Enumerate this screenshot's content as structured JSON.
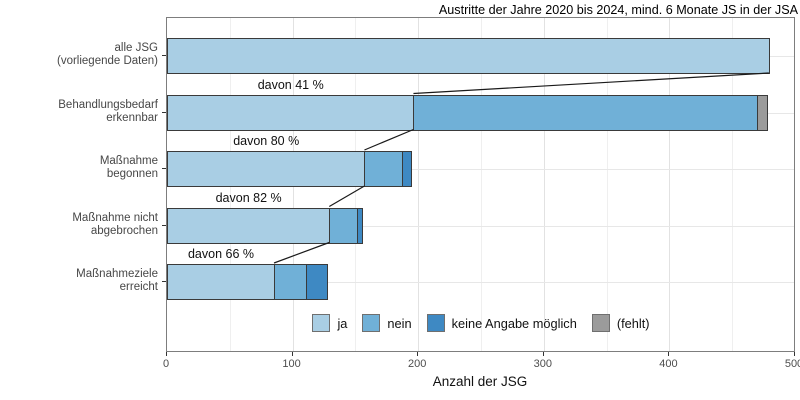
{
  "chart_data": {
    "type": "bar",
    "variant": "horizontal-stacked-funnel",
    "title": "Austritte der Jahre 2020 bis 2024, mind. 6 Monate JS in der JSA",
    "xlabel": "Anzahl der JSG",
    "xlim": [
      0,
      500
    ],
    "x_ticks": [
      0,
      100,
      200,
      300,
      400,
      500
    ],
    "minor_grid_step": 50,
    "grid": true,
    "legend_position": "bottom-inside",
    "categories": [
      "alle JSG\n(vorliegende Daten)",
      "Behandlungsbedarf\nerkennbar",
      "Maßnahme\nbegonnen",
      "Maßnahme nicht\nabgebrochen",
      "Maßnahmeziele\nerreicht"
    ],
    "series": [
      {
        "name": "ja",
        "color": "#a9cee4",
        "values": [
          480,
          197,
          158,
          130,
          86
        ]
      },
      {
        "name": "nein",
        "color": "#70b0d7",
        "values": [
          0,
          274,
          31,
          23,
          26
        ]
      },
      {
        "name": "keine Angabe möglich",
        "color": "#3e89c3",
        "values": [
          0,
          0,
          8,
          5,
          18
        ]
      },
      {
        "name": "(fehlt)",
        "color": "#9b9b9b",
        "values": [
          0,
          9,
          0,
          0,
          0
        ]
      }
    ],
    "annotations": [
      {
        "text": "davon 41 %",
        "bar_index": 1
      },
      {
        "text": "davon 80 %",
        "bar_index": 2
      },
      {
        "text": "davon 82 %",
        "bar_index": 3
      },
      {
        "text": "davon 66 %",
        "bar_index": 4
      }
    ],
    "connectors": "end of 'ja' segment of each bar links to end of 'ja' segment of next bar"
  },
  "colors": {
    "panel_border": "#7d7d7d",
    "bar_border": "#3a3a3a",
    "grid_major": "#e2e2e2",
    "grid_minor": "#efefef",
    "axis_text": "#4d4d4d",
    "connector": "#1a1a1a"
  }
}
